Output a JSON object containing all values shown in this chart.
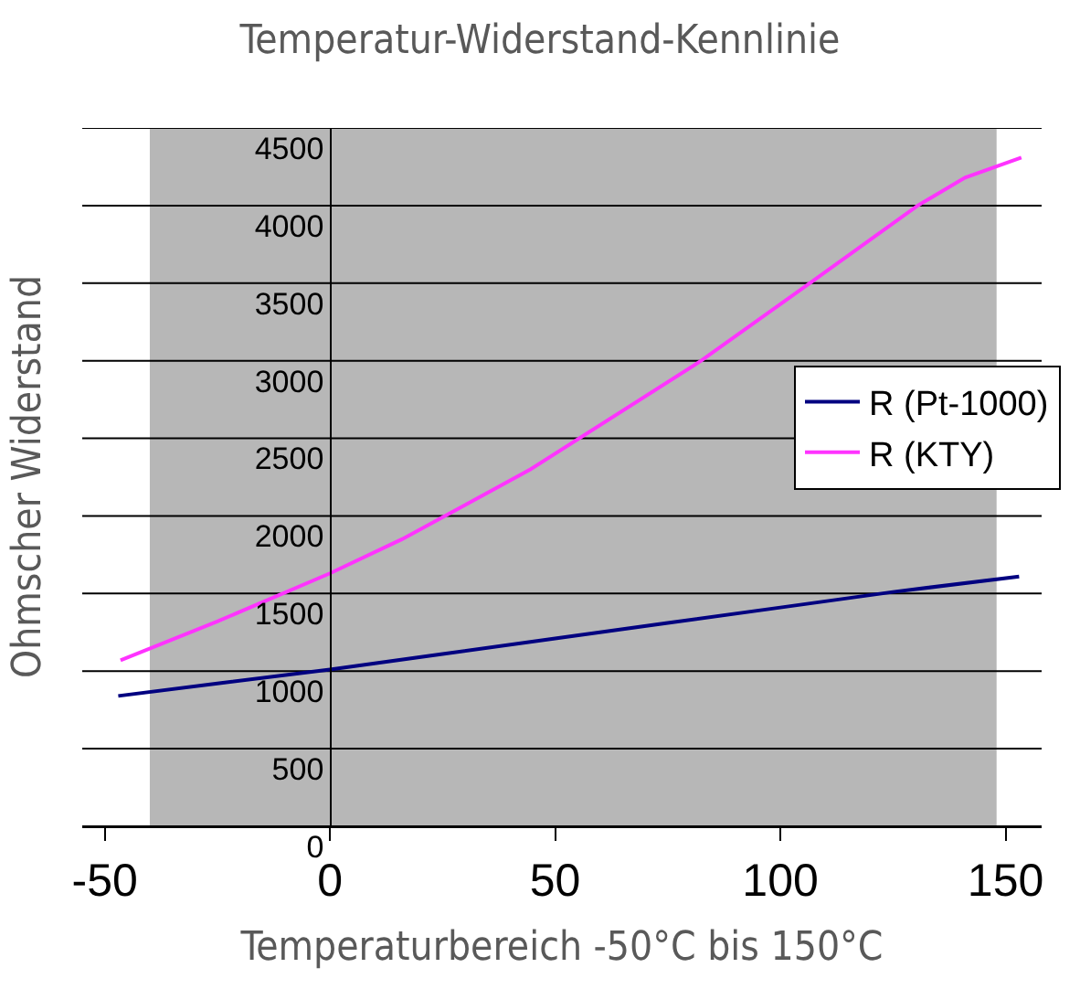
{
  "chart_data": {
    "type": "line",
    "title": "Temperatur-Widerstand-Kennlinie",
    "xlabel": "Temperaturbereich -50°C bis 150°C",
    "ylabel": "Ohmscher Widerstand",
    "series": [
      {
        "name": "R (Pt-1000)",
        "color": "#000080",
        "x": [
          -47,
          -25,
          0,
          25,
          50,
          75,
          100,
          125,
          153
        ],
        "values": [
          840,
          920,
          1010,
          1110,
          1210,
          1310,
          1410,
          1510,
          1610
        ]
      },
      {
        "name": "R (KTY)",
        "color": "#ff33ff",
        "x": [
          -46.5,
          -25,
          0,
          16,
          30,
          44.5,
          82.4,
          107,
          130.5,
          141,
          153.5
        ],
        "values": [
          1070,
          1320,
          1630,
          1850,
          2070,
          2300,
          3000,
          3510,
          4000,
          4180,
          4310
        ]
      }
    ],
    "xlim": [
      -55,
      158
    ],
    "xticks": [
      -50,
      0,
      50,
      100,
      150
    ],
    "ylim": [
      0,
      4500
    ],
    "yticks": [
      0,
      500,
      1000,
      1500,
      2000,
      2500,
      3000,
      3500,
      4000,
      4500
    ],
    "bands": [
      {
        "axis": "x",
        "from": -40,
        "to": 148,
        "color": "#b7b7b7"
      }
    ],
    "grid": "y",
    "legend": "right",
    "marker": "none",
    "line_style": "solid"
  }
}
